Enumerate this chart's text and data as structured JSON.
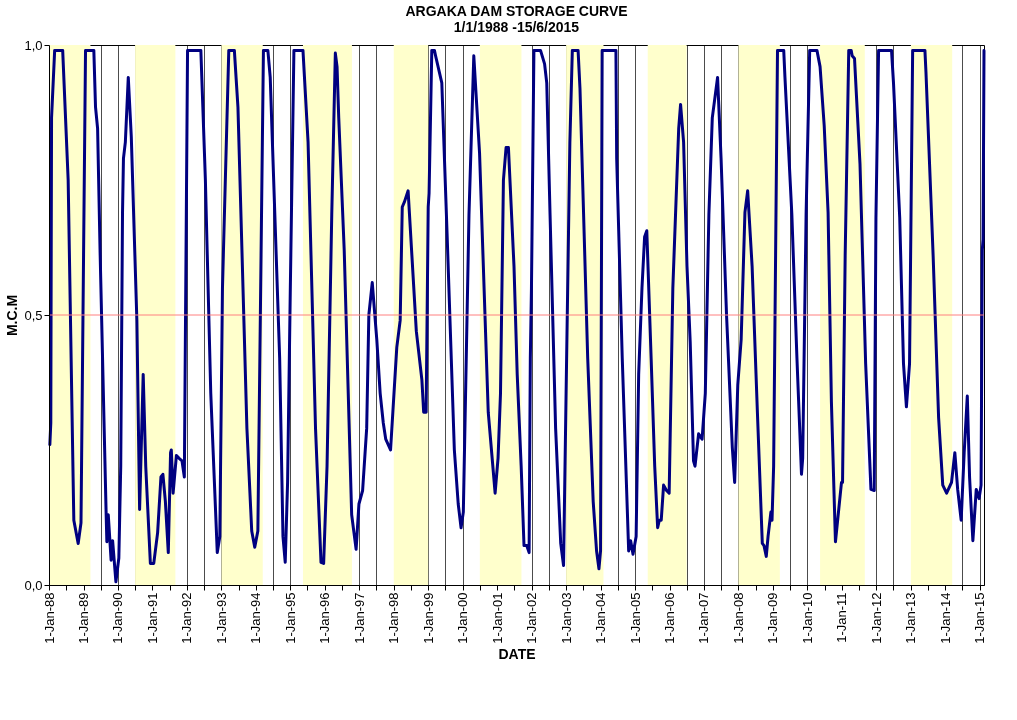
{
  "chart_data": {
    "type": "line",
    "title": "ARGAKA DAM STORAGE CURVE",
    "subtitle": "1/1/1988 -15/6/2015",
    "xlabel": "DATE",
    "ylabel": "M.C.M",
    "x": [
      "1988-01-10",
      "1988-01-20",
      "1988-01-28",
      "1988-03-01",
      "1988-05-25",
      "1988-07-22",
      "1988-09-20",
      "1988-11-05",
      "1988-12-05",
      "1989-01-22",
      "1989-04-20",
      "1989-05-08",
      "1989-05-30",
      "1989-06-25",
      "1989-08-28",
      "1989-09-05",
      "1989-09-20",
      "1989-10-20",
      "1989-11-05",
      "1989-12-10",
      "1990-01-10",
      "1990-01-30",
      "1990-02-18",
      "1990-02-28",
      "1990-03-20",
      "1990-04-20",
      "1990-05-22",
      "1990-07-20",
      "1990-08-18",
      "1990-09-25",
      "1990-10-22",
      "1990-12-10",
      "1991-01-15",
      "1991-02-25",
      "1991-04-01",
      "1991-04-22",
      "1991-05-18",
      "1991-06-18",
      "1991-07-12",
      "1991-07-20",
      "1991-08-08",
      "1991-09-12",
      "1991-10-08",
      "1991-11-10",
      "1991-12-05",
      "1992-01-08",
      "1992-05-28",
      "1992-07-15",
      "1992-09-10",
      "1992-11-18",
      "1992-12-15",
      "1993-01-12",
      "1993-03-20",
      "1993-05-18",
      "1993-06-25",
      "1993-09-28",
      "1993-11-18",
      "1993-12-20",
      "1994-01-22",
      "1994-03-22",
      "1994-05-08",
      "1994-06-02",
      "1994-09-10",
      "1994-10-15",
      "1994-11-08",
      "1994-12-03",
      "1995-01-01",
      "1995-02-08",
      "1995-05-15",
      "1995-07-08",
      "1995-09-25",
      "1995-11-22",
      "1995-12-20",
      "1996-01-25",
      "1996-03-15",
      "1996-04-22",
      "1996-05-10",
      "1996-05-28",
      "1996-07-25",
      "1996-10-12",
      "1996-11-28",
      "1996-12-28",
      "1997-02-05",
      "1997-03-20",
      "1997-04-12",
      "1997-05-18",
      "1997-07-05",
      "1997-08-10",
      "1997-09-12",
      "1997-10-08",
      "1997-11-28",
      "1998-02-02",
      "1998-03-10",
      "1998-04-01",
      "1998-04-25",
      "1998-06-02",
      "1998-08-28",
      "1998-10-26",
      "1998-11-14",
      "1998-12-10",
      "1999-01-01",
      "1999-01-10",
      "1999-02-08",
      "1999-03-08",
      "1999-03-20",
      "1999-05-25",
      "1999-07-20",
      "1999-10-05",
      "1999-11-15",
      "1999-12-15",
      "2000-01-08",
      "2000-03-08",
      "2000-04-28",
      "2000-06-28",
      "2000-09-28",
      "2000-12-10",
      "2001-01-10",
      "2001-02-05",
      "2001-03-08",
      "2001-04-05",
      "2001-04-30",
      "2001-06-28",
      "2001-08-01",
      "2001-09-12",
      "2001-10-12",
      "2001-11-10",
      "2001-12-05",
      "2001-12-18",
      "2001-12-30",
      "2002-01-25",
      "2002-04-05",
      "2002-05-18",
      "2002-06-10",
      "2002-07-15",
      "2002-09-12",
      "2002-11-05",
      "2002-12-05",
      "2003-01-01",
      "2003-02-10",
      "2003-03-08",
      "2003-05-08",
      "2003-05-28",
      "2003-06-25",
      "2003-08-18",
      "2003-10-15",
      "2003-11-20",
      "2003-12-15",
      "2004-01-01",
      "2004-01-18",
      "2004-06-12",
      "2004-06-20",
      "2004-08-18",
      "2004-10-25",
      "2004-11-15",
      "2004-12-10",
      "2005-01-12",
      "2005-02-08",
      "2005-03-15",
      "2005-04-12",
      "2005-05-05",
      "2005-06-20",
      "2005-07-28",
      "2005-08-28",
      "2005-09-15",
      "2005-10-05",
      "2005-10-30",
      "2005-11-30",
      "2005-12-28",
      "2006-02-05",
      "2006-04-08",
      "2006-04-28",
      "2006-05-30",
      "2006-07-05",
      "2006-08-08",
      "2006-09-12",
      "2006-09-28",
      "2006-11-05",
      "2006-12-12",
      "2007-01-15",
      "2007-02-22",
      "2007-03-30",
      "2007-05-25",
      "2007-07-01",
      "2007-08-28",
      "2007-10-28",
      "2007-11-22",
      "2007-12-25",
      "2008-01-30",
      "2008-03-10",
      "2008-04-08",
      "2008-05-25",
      "2008-07-20",
      "2008-09-10",
      "2008-09-28",
      "2008-10-22",
      "2008-11-10",
      "2008-12-10",
      "2008-12-22",
      "2009-01-08",
      "2009-02-18",
      "2009-04-25",
      "2009-05-08",
      "2009-07-20",
      "2009-09-12",
      "2009-10-30",
      "2009-11-12",
      "2009-12-18",
      "2010-01-25",
      "2010-04-12",
      "2010-05-15",
      "2010-06-28",
      "2010-08-08",
      "2010-09-12",
      "2010-10-25",
      "2010-12-28",
      "2011-01-08",
      "2011-02-05",
      "2011-03-15",
      "2011-04-10",
      "2011-04-20",
      "2011-05-15",
      "2011-07-12",
      "2011-09-10",
      "2011-11-05",
      "2011-12-10",
      "2011-12-28",
      "2012-01-25",
      "2012-06-10",
      "2012-07-01",
      "2012-09-05",
      "2012-10-15",
      "2012-11-15",
      "2012-12-18",
      "2013-01-20",
      "2013-05-30",
      "2013-06-10",
      "2013-08-25",
      "2013-10-22",
      "2013-12-05",
      "2014-01-15",
      "2014-03-08",
      "2014-04-12",
      "2014-05-12",
      "2014-06-18",
      "2014-07-20",
      "2014-08-22",
      "2014-09-15",
      "2014-10-20",
      "2014-11-25",
      "2014-12-25",
      "2015-01-15",
      "2015-01-28",
      "2015-02-05",
      "2015-02-15"
    ],
    "series": [
      {
        "color": "#000080",
        "values": [
          0.26,
          0.3,
          0.865,
          0.99,
          0.99,
          0.75,
          0.12,
          0.077,
          0.115,
          0.99,
          0.99,
          0.885,
          0.845,
          0.62,
          0.135,
          0.08,
          0.13,
          0.046,
          0.082,
          0.006,
          0.05,
          0.22,
          0.69,
          0.79,
          0.82,
          0.94,
          0.83,
          0.49,
          0.14,
          0.39,
          0.22,
          0.04,
          0.04,
          0.097,
          0.2,
          0.205,
          0.155,
          0.06,
          0.245,
          0.25,
          0.17,
          0.24,
          0.235,
          0.23,
          0.2,
          0.99,
          0.99,
          0.75,
          0.355,
          0.06,
          0.09,
          0.55,
          0.99,
          0.99,
          0.885,
          0.29,
          0.1,
          0.07,
          0.1,
          0.99,
          0.99,
          0.94,
          0.42,
          0.09,
          0.042,
          0.19,
          0.55,
          0.99,
          0.99,
          0.82,
          0.29,
          0.042,
          0.04,
          0.22,
          0.686,
          0.985,
          0.96,
          0.865,
          0.62,
          0.13,
          0.066,
          0.15,
          0.175,
          0.29,
          0.5,
          0.56,
          0.455,
          0.355,
          0.3,
          0.27,
          0.25,
          0.44,
          0.49,
          0.7,
          0.71,
          0.73,
          0.47,
          0.38,
          0.32,
          0.32,
          0.7,
          0.725,
          0.99,
          0.99,
          0.98,
          0.93,
          0.65,
          0.25,
          0.15,
          0.106,
          0.135,
          0.686,
          0.98,
          0.8,
          0.32,
          0.17,
          0.235,
          0.355,
          0.75,
          0.81,
          0.81,
          0.59,
          0.39,
          0.22,
          0.073,
          0.073,
          0.06,
          0.42,
          0.55,
          0.99,
          0.99,
          0.965,
          0.93,
          0.686,
          0.29,
          0.077,
          0.036,
          0.355,
          0.82,
          0.99,
          0.99,
          0.92,
          0.75,
          0.42,
          0.155,
          0.063,
          0.03,
          0.063,
          0.99,
          0.99,
          0.79,
          0.42,
          0.063,
          0.082,
          0.057,
          0.09,
          0.39,
          0.55,
          0.645,
          0.656,
          0.42,
          0.22,
          0.106,
          0.12,
          0.12,
          0.185,
          0.175,
          0.17,
          0.55,
          0.845,
          0.89,
          0.82,
          0.59,
          0.45,
          0.23,
          0.22,
          0.28,
          0.27,
          0.355,
          0.686,
          0.865,
          0.94,
          0.79,
          0.5,
          0.255,
          0.19,
          0.37,
          0.455,
          0.69,
          0.73,
          0.59,
          0.32,
          0.077,
          0.073,
          0.053,
          0.09,
          0.135,
          0.12,
          0.22,
          0.99,
          0.99,
          0.94,
          0.686,
          0.42,
          0.205,
          0.235,
          0.686,
          0.99,
          0.99,
          0.96,
          0.85,
          0.69,
          0.34,
          0.08,
          0.19,
          0.19,
          0.61,
          0.99,
          0.99,
          0.98,
          0.975,
          0.78,
          0.41,
          0.177,
          0.175,
          0.68,
          0.99,
          0.99,
          0.93,
          0.68,
          0.41,
          0.33,
          0.41,
          0.99,
          0.99,
          0.95,
          0.61,
          0.31,
          0.185,
          0.17,
          0.19,
          0.245,
          0.177,
          0.12,
          0.245,
          0.35,
          0.2,
          0.082,
          0.177,
          0.16,
          0.185,
          0.62,
          0.64,
          0.99
        ]
      }
    ],
    "xlim": [
      "1988-01-01",
      "2015-02-15"
    ],
    "xticks": [
      {
        "value": "1988-01-01",
        "label": "1-Jan-88"
      },
      {
        "value": "1988-07-01",
        "label": null
      },
      {
        "value": "1989-01-01",
        "label": "1-Jan-89"
      },
      {
        "value": "1989-07-01",
        "label": null
      },
      {
        "value": "1990-01-01",
        "label": "1-Jan-90"
      },
      {
        "value": "1990-07-01",
        "label": null
      },
      {
        "value": "1991-01-01",
        "label": "1-Jan-91"
      },
      {
        "value": "1991-07-01",
        "label": null
      },
      {
        "value": "1992-01-01",
        "label": "1-Jan-92"
      },
      {
        "value": "1992-07-01",
        "label": null
      },
      {
        "value": "1993-01-01",
        "label": "1-Jan-93"
      },
      {
        "value": "1993-07-01",
        "label": null
      },
      {
        "value": "1994-01-01",
        "label": "1-Jan-94"
      },
      {
        "value": "1994-07-01",
        "label": null
      },
      {
        "value": "1995-01-01",
        "label": "1-Jan-95"
      },
      {
        "value": "1995-07-01",
        "label": null
      },
      {
        "value": "1996-01-01",
        "label": "1-Jan-96"
      },
      {
        "value": "1996-07-01",
        "label": null
      },
      {
        "value": "1997-01-01",
        "label": "1-Jan-97"
      },
      {
        "value": "1997-07-01",
        "label": null
      },
      {
        "value": "1998-01-01",
        "label": "1-Jan-98"
      },
      {
        "value": "1998-07-01",
        "label": null
      },
      {
        "value": "1999-01-01",
        "label": "1-Jan-99"
      },
      {
        "value": "1999-07-01",
        "label": null
      },
      {
        "value": "2000-01-01",
        "label": "1-Jan-00"
      },
      {
        "value": "2000-07-01",
        "label": null
      },
      {
        "value": "2001-01-01",
        "label": "1-Jan-01"
      },
      {
        "value": "2001-07-01",
        "label": null
      },
      {
        "value": "2002-01-01",
        "label": "1-Jan-02"
      },
      {
        "value": "2002-07-01",
        "label": null
      },
      {
        "value": "2003-01-01",
        "label": "1-Jan-03"
      },
      {
        "value": "2003-07-01",
        "label": null
      },
      {
        "value": "2004-01-01",
        "label": "1-Jan-04"
      },
      {
        "value": "2004-07-01",
        "label": null
      },
      {
        "value": "2005-01-01",
        "label": "1-Jan-05"
      },
      {
        "value": "2005-07-01",
        "label": null
      },
      {
        "value": "2006-01-01",
        "label": "1-Jan-06"
      },
      {
        "value": "2006-07-01",
        "label": null
      },
      {
        "value": "2007-01-01",
        "label": "1-Jan-07"
      },
      {
        "value": "2007-07-01",
        "label": null
      },
      {
        "value": "2008-01-01",
        "label": "1-Jan-08"
      },
      {
        "value": "2008-07-01",
        "label": null
      },
      {
        "value": "2009-01-01",
        "label": "1-Jan-09"
      },
      {
        "value": "2009-07-01",
        "label": null
      },
      {
        "value": "2010-01-01",
        "label": "1-Jan-10"
      },
      {
        "value": "2010-07-01",
        "label": null
      },
      {
        "value": "2011-01-01",
        "label": "1-Jan-11"
      },
      {
        "value": "2011-07-01",
        "label": null
      },
      {
        "value": "2012-01-01",
        "label": "1-Jan-12"
      },
      {
        "value": "2012-07-01",
        "label": null
      },
      {
        "value": "2013-01-01",
        "label": "1-Jan-13"
      },
      {
        "value": "2013-07-01",
        "label": null
      },
      {
        "value": "2014-01-01",
        "label": "1-Jan-14"
      },
      {
        "value": "2014-07-01",
        "label": null
      },
      {
        "value": "2015-01-01",
        "label": "1-Jan-15"
      }
    ],
    "ylim": [
      0,
      1
    ],
    "yticks": [
      {
        "value": 0,
        "label": "0,0"
      },
      {
        "value": 0.5,
        "label": "0,5"
      },
      {
        "value": 1,
        "label": "1,0"
      }
    ],
    "grid": "x",
    "ref_lines": [
      {
        "axis": "y",
        "value": 0.5,
        "color": "#ff8080"
      }
    ],
    "bands": [
      {
        "axis": "x",
        "from": "1988-01-01",
        "to": "1989-03-15",
        "color": "#ffffcc"
      },
      {
        "axis": "x",
        "from": "1990-07-01",
        "to": "1991-09-01",
        "color": "#ffffcc"
      },
      {
        "axis": "x",
        "from": "1993-01-01",
        "to": "1994-03-15",
        "color": "#ffffcc"
      },
      {
        "axis": "x",
        "from": "1995-05-15",
        "to": "1996-10-15",
        "color": "#ffffcc"
      },
      {
        "axis": "x",
        "from": "1998-01-01",
        "to": "1999-01-01",
        "color": "#ffffcc"
      },
      {
        "axis": "x",
        "from": "2000-07-01",
        "to": "2001-09-15",
        "color": "#ffffcc"
      },
      {
        "axis": "x",
        "from": "2003-01-01",
        "to": "2004-02-01",
        "color": "#ffffcc"
      },
      {
        "axis": "x",
        "from": "2005-05-15",
        "to": "2006-07-01",
        "color": "#ffffcc"
      },
      {
        "axis": "x",
        "from": "2008-01-01",
        "to": "2009-03-15",
        "color": "#ffffcc"
      },
      {
        "axis": "x",
        "from": "2010-05-15",
        "to": "2011-09-01",
        "color": "#ffffcc"
      },
      {
        "axis": "x",
        "from": "2013-01-01",
        "to": "2014-03-15",
        "color": "#ffffcc"
      }
    ]
  }
}
